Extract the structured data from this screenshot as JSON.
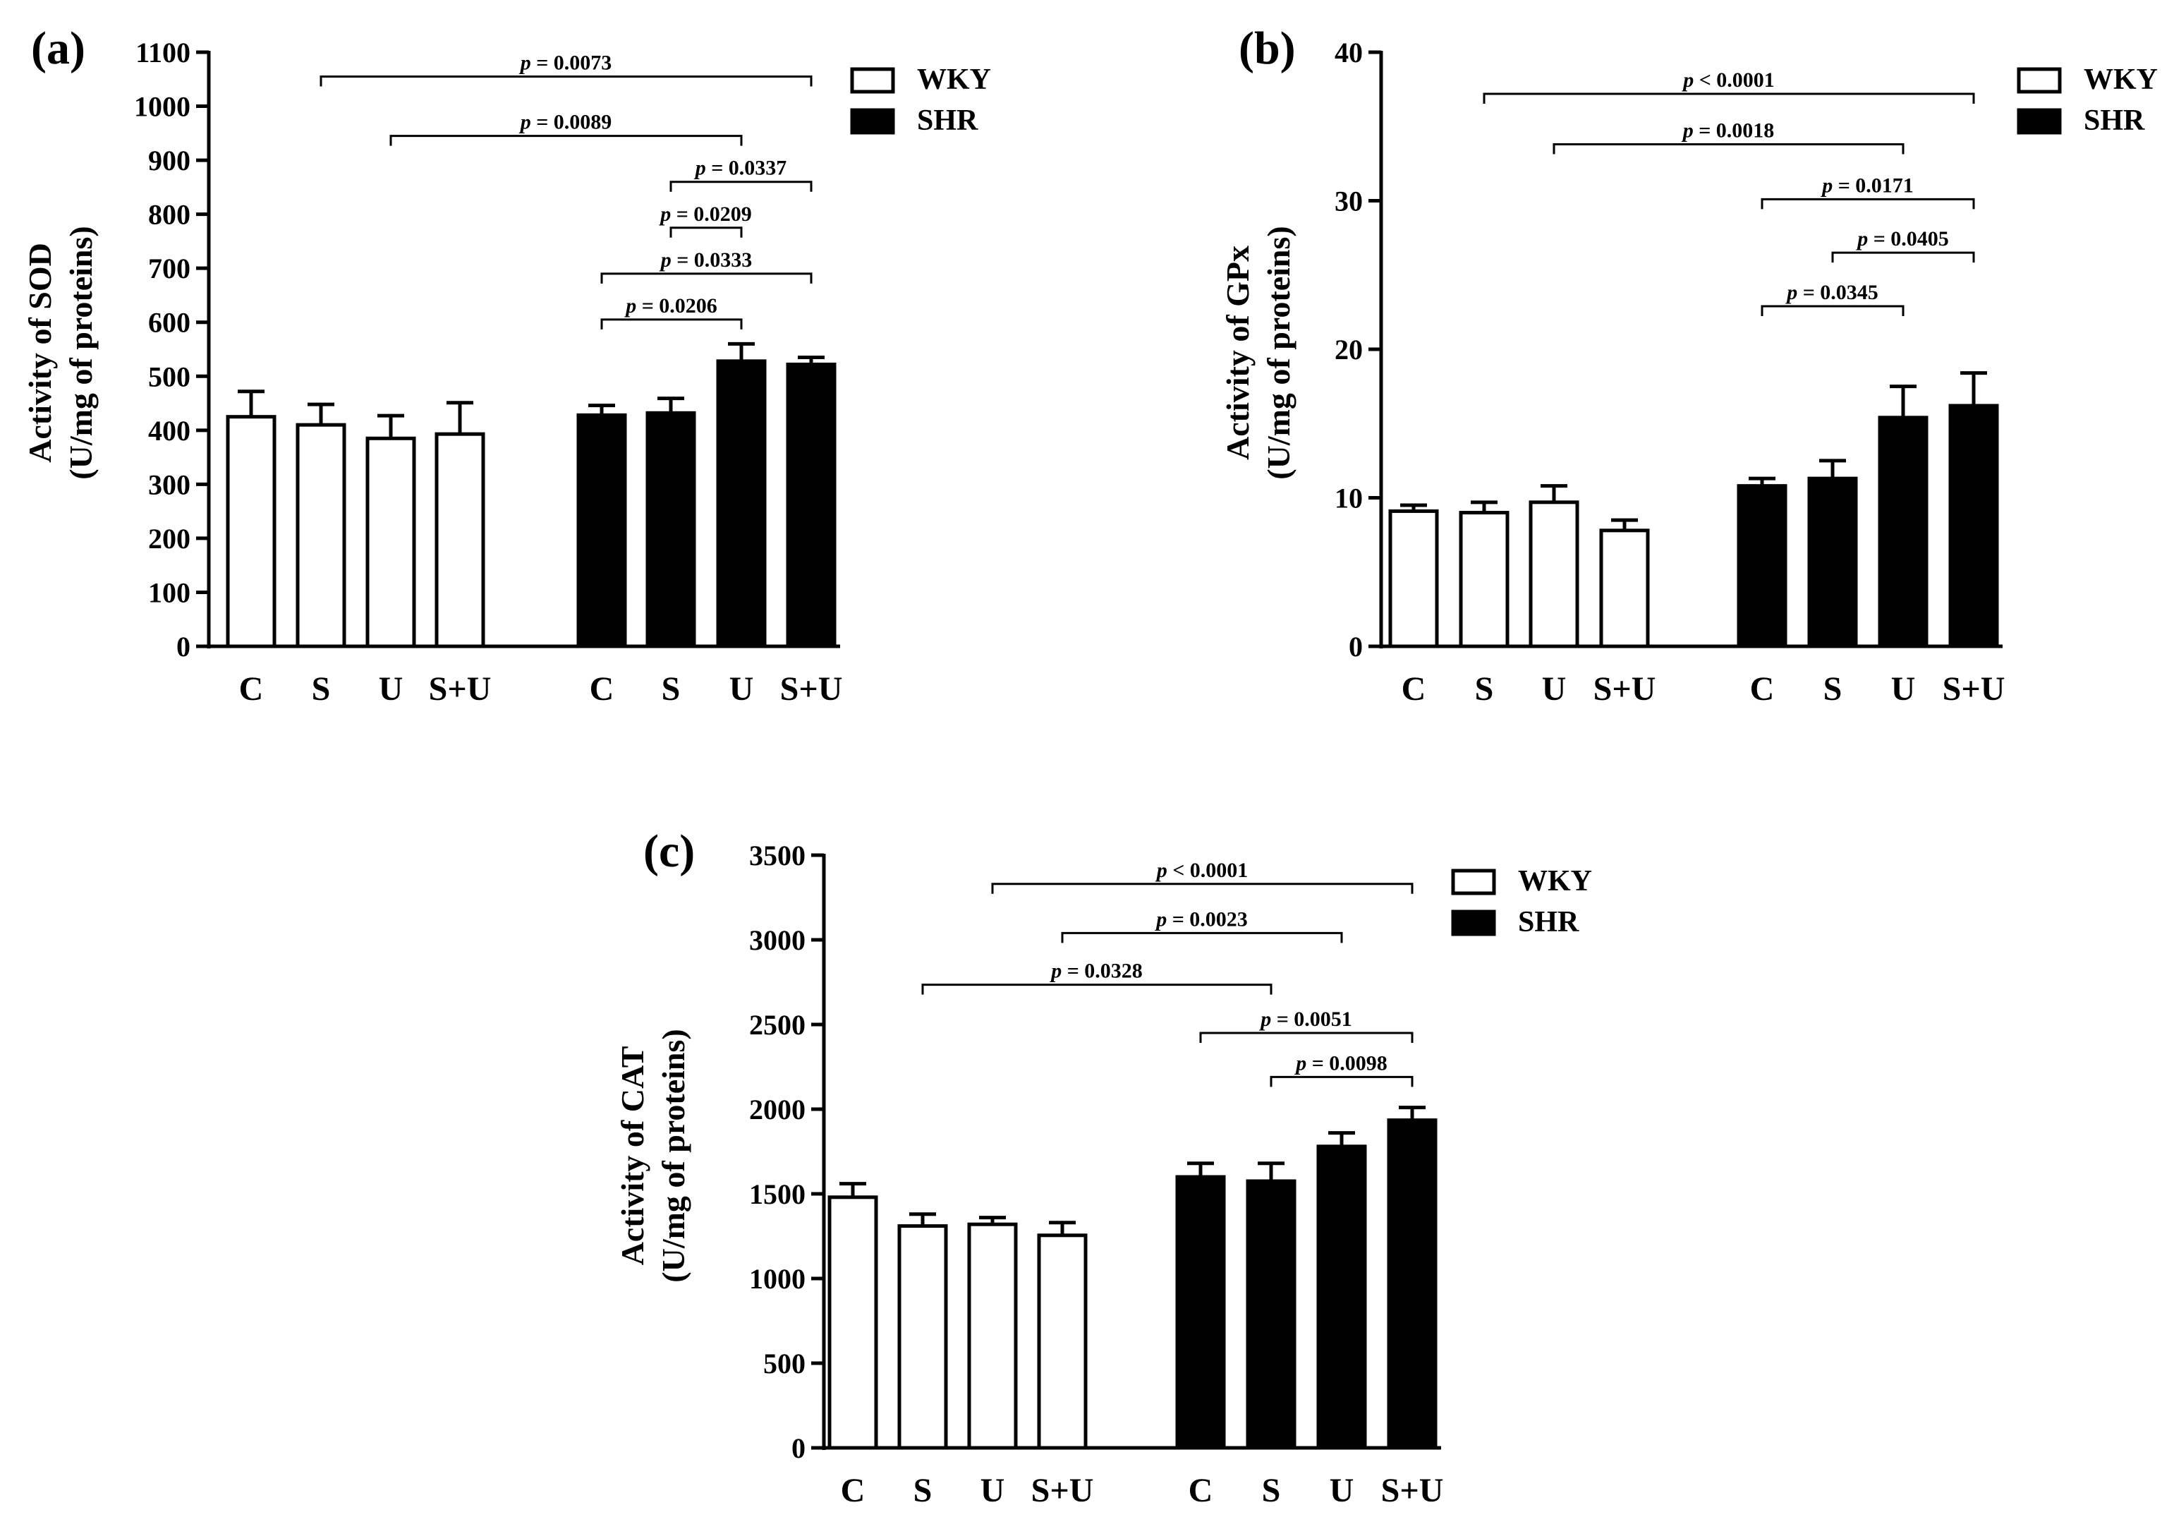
{
  "chart_data": [
    {
      "type": "bar",
      "panel_label": "(a)",
      "ylabel_line1": "Activity of SOD",
      "ylabel_line2": "(U/mg of proteins)",
      "ylim": [
        0,
        1100
      ],
      "yticks": [
        0,
        100,
        200,
        300,
        400,
        500,
        600,
        700,
        800,
        900,
        1000,
        1100
      ],
      "categories": [
        "C",
        "S",
        "U",
        "S+U"
      ],
      "series": [
        {
          "name": "WKY",
          "fill": "#ffffff",
          "values": [
            425,
            410,
            385,
            393
          ],
          "errors": [
            47,
            38,
            42,
            58
          ]
        },
        {
          "name": "SHR",
          "fill": "#000000",
          "values": [
            428,
            432,
            528,
            522
          ],
          "errors": [
            18,
            27,
            32,
            13
          ]
        }
      ],
      "comparisons": [
        {
          "from": [
            0,
            1
          ],
          "to": [
            1,
            3
          ],
          "label": "= 0.0073",
          "y": 1055
        },
        {
          "from": [
            0,
            2
          ],
          "to": [
            1,
            2
          ],
          "label": "= 0.0089",
          "y": 945
        },
        {
          "from": [
            1,
            1
          ],
          "to": [
            1,
            3
          ],
          "label": "= 0.0337",
          "y": 860
        },
        {
          "from": [
            1,
            1
          ],
          "to": [
            1,
            2
          ],
          "label": "= 0.0209",
          "y": 775
        },
        {
          "from": [
            1,
            0
          ],
          "to": [
            1,
            3
          ],
          "label": "= 0.0333",
          "y": 690
        },
        {
          "from": [
            1,
            0
          ],
          "to": [
            1,
            2
          ],
          "label": "= 0.0206",
          "y": 605
        }
      ]
    },
    {
      "type": "bar",
      "panel_label": "(b)",
      "ylabel_line1": "Activity of GPx",
      "ylabel_line2": "(U/mg of proteins)",
      "ylim": [
        0,
        40
      ],
      "yticks": [
        0,
        10,
        20,
        30,
        40
      ],
      "categories": [
        "C",
        "S",
        "U",
        "S+U"
      ],
      "series": [
        {
          "name": "WKY",
          "fill": "#ffffff",
          "values": [
            9.1,
            9.0,
            9.7,
            7.8
          ],
          "errors": [
            0.4,
            0.7,
            1.1,
            0.7
          ]
        },
        {
          "name": "SHR",
          "fill": "#000000",
          "values": [
            10.8,
            11.3,
            15.4,
            16.2
          ],
          "errors": [
            0.5,
            1.2,
            2.1,
            2.2
          ]
        }
      ],
      "comparisons": [
        {
          "from": [
            0,
            1
          ],
          "to": [
            1,
            3
          ],
          "label": "< 0.0001",
          "y": 37.2
        },
        {
          "from": [
            0,
            2
          ],
          "to": [
            1,
            2
          ],
          "label": "= 0.0018",
          "y": 33.8
        },
        {
          "from": [
            1,
            0
          ],
          "to": [
            1,
            3
          ],
          "label": "= 0.0171",
          "y": 30.1
        },
        {
          "from": [
            1,
            1
          ],
          "to": [
            1,
            3
          ],
          "label": "= 0.0405",
          "y": 26.5
        },
        {
          "from": [
            1,
            0
          ],
          "to": [
            1,
            2
          ],
          "label": "= 0.0345",
          "y": 22.9
        }
      ]
    },
    {
      "type": "bar",
      "panel_label": "(c)",
      "ylabel_line1": "Activity of CAT",
      "ylabel_line2": "(U/mg of proteins)",
      "ylim": [
        0,
        3500
      ],
      "yticks": [
        0,
        500,
        1000,
        1500,
        2000,
        2500,
        3000,
        3500
      ],
      "categories": [
        "C",
        "S",
        "U",
        "S+U"
      ],
      "series": [
        {
          "name": "WKY",
          "fill": "#ffffff",
          "values": [
            1480,
            1310,
            1320,
            1255
          ],
          "errors": [
            80,
            70,
            40,
            75
          ]
        },
        {
          "name": "SHR",
          "fill": "#000000",
          "values": [
            1600,
            1575,
            1780,
            1935
          ],
          "errors": [
            80,
            105,
            80,
            75
          ]
        }
      ],
      "comparisons": [
        {
          "from": [
            0,
            2
          ],
          "to": [
            1,
            3
          ],
          "label": "< 0.0001",
          "y": 3330
        },
        {
          "from": [
            0,
            3
          ],
          "to": [
            1,
            2
          ],
          "label": "= 0.0023",
          "y": 3040
        },
        {
          "from": [
            0,
            1
          ],
          "to": [
            1,
            1
          ],
          "label": "= 0.0328",
          "y": 2735
        },
        {
          "from": [
            1,
            0
          ],
          "to": [
            1,
            3
          ],
          "label": "= 0.0051",
          "y": 2450
        },
        {
          "from": [
            1,
            1
          ],
          "to": [
            1,
            3
          ],
          "label": "= 0.0098",
          "y": 2190
        }
      ]
    }
  ],
  "legend": {
    "items": [
      {
        "label": "WKY",
        "fill": "#ffffff"
      },
      {
        "label": "SHR",
        "fill": "#000000"
      }
    ]
  },
  "p_symbol": "p"
}
